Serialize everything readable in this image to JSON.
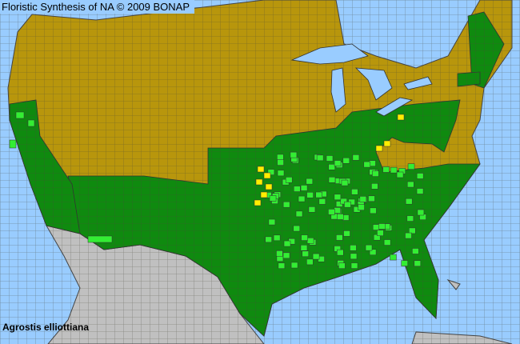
{
  "header": {
    "title": "Floristic Synthesis of NA © 2009 BONAP"
  },
  "map": {
    "species": "Agrostis elliottiana",
    "colors": {
      "ocean": "#99ccff",
      "absent_olive": "#b8960c",
      "present_dark_green": "#0f8a0f",
      "bright_green": "#33ee33",
      "yellow": "#ffee00",
      "foreign_gray": "#c0c0c0",
      "county_border": "#555555"
    }
  }
}
